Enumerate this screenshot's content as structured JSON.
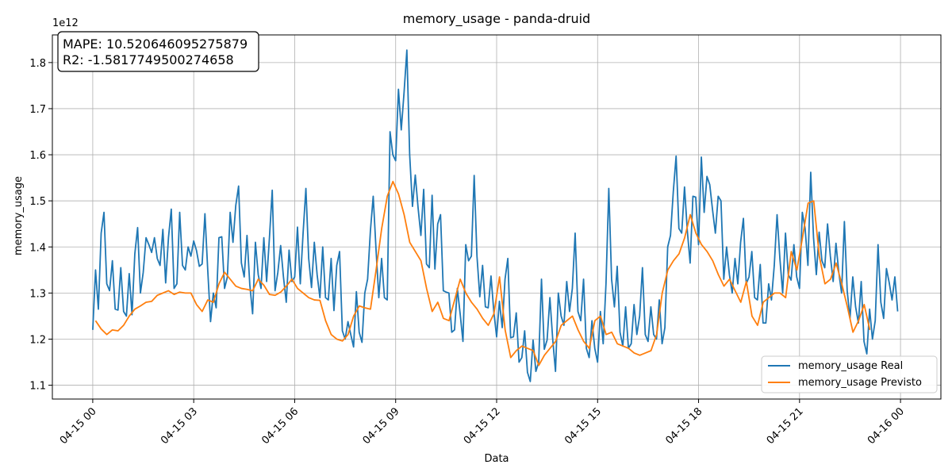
{
  "chart_data": {
    "type": "line",
    "title": "memory_usage - panda-druid",
    "xlabel": "Data",
    "ylabel": "memory_usage",
    "y_offset_text": "1e12",
    "x_tick_labels": [
      "04-15 00",
      "04-15 03",
      "04-15 06",
      "04-15 09",
      "04-15 12",
      "04-15 15",
      "04-15 18",
      "04-15 21",
      "04-16 00"
    ],
    "y_ticks": [
      1.1,
      1.2,
      1.3,
      1.4,
      1.5,
      1.6,
      1.7,
      1.8
    ],
    "y_tick_labels": [
      "1.1",
      "1.2",
      "1.3",
      "1.4",
      "1.5",
      "1.6",
      "1.7",
      "1.8"
    ],
    "xlim_hours": [
      -1.2,
      25.2
    ],
    "ylim": [
      1.07,
      1.86
    ],
    "grid": true,
    "legend_position": "lower-right",
    "annotation": {
      "lines": [
        "MAPE: 10.520646095275879",
        "R2: -1.5817749500274658"
      ]
    },
    "series": [
      {
        "name": "memory_usage Real",
        "color": "#1f77b4",
        "x_start_hours": 0,
        "x_step_hours": 0.08333,
        "values": [
          1.22,
          1.35,
          1.265,
          1.43,
          1.475,
          1.32,
          1.305,
          1.37,
          1.265,
          1.263,
          1.355,
          1.26,
          1.25,
          1.342,
          1.253,
          1.385,
          1.442,
          1.3,
          1.345,
          1.42,
          1.405,
          1.388,
          1.42,
          1.375,
          1.36,
          1.438,
          1.322,
          1.42,
          1.482,
          1.31,
          1.32,
          1.475,
          1.36,
          1.35,
          1.4,
          1.38,
          1.413,
          1.392,
          1.358,
          1.363,
          1.472,
          1.35,
          1.238,
          1.3,
          1.268,
          1.42,
          1.422,
          1.31,
          1.335,
          1.475,
          1.41,
          1.49,
          1.532,
          1.365,
          1.335,
          1.425,
          1.318,
          1.255,
          1.41,
          1.34,
          1.31,
          1.42,
          1.325,
          1.42,
          1.523,
          1.305,
          1.345,
          1.403,
          1.335,
          1.28,
          1.393,
          1.325,
          1.335,
          1.443,
          1.32,
          1.43,
          1.527,
          1.375,
          1.312,
          1.41,
          1.34,
          1.29,
          1.4,
          1.29,
          1.285,
          1.375,
          1.262,
          1.36,
          1.39,
          1.218,
          1.2,
          1.238,
          1.21,
          1.183,
          1.303,
          1.215,
          1.193,
          1.3,
          1.33,
          1.435,
          1.51,
          1.395,
          1.29,
          1.375,
          1.29,
          1.285,
          1.65,
          1.6,
          1.587,
          1.742,
          1.654,
          1.735,
          1.827,
          1.6,
          1.488,
          1.556,
          1.485,
          1.425,
          1.525,
          1.363,
          1.355,
          1.512,
          1.352,
          1.45,
          1.47,
          1.305,
          1.302,
          1.3,
          1.215,
          1.22,
          1.31,
          1.255,
          1.195,
          1.405,
          1.37,
          1.38,
          1.555,
          1.38,
          1.292,
          1.36,
          1.27,
          1.268,
          1.337,
          1.26,
          1.205,
          1.282,
          1.225,
          1.33,
          1.375,
          1.203,
          1.205,
          1.257,
          1.15,
          1.16,
          1.218,
          1.128,
          1.108,
          1.198,
          1.13,
          1.15,
          1.33,
          1.178,
          1.198,
          1.29,
          1.2,
          1.13,
          1.3,
          1.25,
          1.23,
          1.325,
          1.26,
          1.31,
          1.43,
          1.26,
          1.24,
          1.33,
          1.18,
          1.16,
          1.24,
          1.18,
          1.15,
          1.26,
          1.19,
          1.32,
          1.527,
          1.33,
          1.27,
          1.358,
          1.215,
          1.185,
          1.27,
          1.18,
          1.19,
          1.275,
          1.21,
          1.25,
          1.355,
          1.21,
          1.195,
          1.27,
          1.21,
          1.2,
          1.285,
          1.19,
          1.225,
          1.4,
          1.425,
          1.52,
          1.597,
          1.44,
          1.43,
          1.53,
          1.435,
          1.365,
          1.51,
          1.508,
          1.405,
          1.595,
          1.475,
          1.553,
          1.535,
          1.48,
          1.43,
          1.51,
          1.5,
          1.33,
          1.4,
          1.34,
          1.3,
          1.375,
          1.32,
          1.41,
          1.462,
          1.32,
          1.335,
          1.39,
          1.29,
          1.285,
          1.362,
          1.235,
          1.235,
          1.32,
          1.285,
          1.36,
          1.47,
          1.375,
          1.3,
          1.43,
          1.34,
          1.328,
          1.405,
          1.335,
          1.31,
          1.475,
          1.44,
          1.36,
          1.562,
          1.42,
          1.34,
          1.432,
          1.37,
          1.355,
          1.45,
          1.38,
          1.325,
          1.408,
          1.345,
          1.3,
          1.455,
          1.305,
          1.245,
          1.335,
          1.27,
          1.235,
          1.325,
          1.195,
          1.168,
          1.265,
          1.2,
          1.24,
          1.405,
          1.28,
          1.245,
          1.353,
          1.322,
          1.285,
          1.335,
          1.26
        ]
      },
      {
        "name": "memory_usage Previsto",
        "color": "#ff7f0e",
        "x_start_hours": 0.0833,
        "x_step_hours": 0.1667,
        "values": [
          1.24,
          1.222,
          1.21,
          1.22,
          1.218,
          1.23,
          1.25,
          1.265,
          1.272,
          1.28,
          1.282,
          1.295,
          1.3,
          1.305,
          1.297,
          1.302,
          1.3,
          1.3,
          1.275,
          1.26,
          1.285,
          1.28,
          1.32,
          1.345,
          1.33,
          1.315,
          1.31,
          1.308,
          1.305,
          1.33,
          1.317,
          1.297,
          1.295,
          1.302,
          1.315,
          1.33,
          1.31,
          1.3,
          1.29,
          1.285,
          1.284,
          1.24,
          1.21,
          1.2,
          1.196,
          1.21,
          1.25,
          1.272,
          1.268,
          1.265,
          1.35,
          1.44,
          1.51,
          1.542,
          1.515,
          1.47,
          1.41,
          1.39,
          1.37,
          1.31,
          1.26,
          1.28,
          1.245,
          1.24,
          1.285,
          1.33,
          1.3,
          1.28,
          1.265,
          1.245,
          1.23,
          1.255,
          1.335,
          1.22,
          1.16,
          1.175,
          1.185,
          1.18,
          1.175,
          1.143,
          1.165,
          1.18,
          1.195,
          1.23,
          1.24,
          1.25,
          1.22,
          1.195,
          1.18,
          1.24,
          1.25,
          1.21,
          1.215,
          1.19,
          1.185,
          1.18,
          1.17,
          1.165,
          1.17,
          1.175,
          1.21,
          1.3,
          1.35,
          1.37,
          1.385,
          1.42,
          1.47,
          1.43,
          1.405,
          1.39,
          1.37,
          1.34,
          1.315,
          1.33,
          1.305,
          1.28,
          1.325,
          1.25,
          1.23,
          1.28,
          1.29,
          1.3,
          1.3,
          1.29,
          1.39,
          1.35,
          1.42,
          1.495,
          1.5,
          1.38,
          1.32,
          1.33,
          1.365,
          1.32,
          1.27,
          1.215,
          1.24,
          1.275,
          1.22
        ]
      }
    ]
  }
}
